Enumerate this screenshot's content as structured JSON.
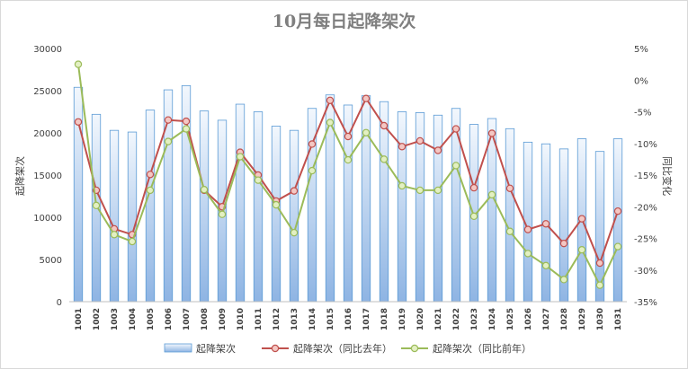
{
  "chart_data": {
    "type": "bar",
    "title": "10月每日起降架次",
    "ylabel": "起降架次",
    "y2label": "同比变化",
    "ylim": [
      0,
      30000
    ],
    "y_ticks": [
      "0",
      "5000",
      "10000",
      "15000",
      "20000",
      "25000",
      "30000"
    ],
    "y2lim": [
      -0.35,
      0.05
    ],
    "y2_ticks": [
      "-35%",
      "-30%",
      "-25%",
      "-20%",
      "-15%",
      "-10%",
      "-5%",
      "0%",
      "5%"
    ],
    "grid": false,
    "legend_position": "bottom",
    "categories": [
      "1001",
      "1002",
      "1003",
      "1004",
      "1005",
      "1006",
      "1007",
      "1008",
      "1009",
      "1010",
      "1011",
      "1012",
      "1013",
      "1014",
      "1015",
      "1016",
      "1017",
      "1018",
      "1019",
      "1020",
      "1021",
      "1022",
      "1023",
      "1024",
      "1025",
      "1026",
      "1027",
      "1028",
      "1029",
      "1030",
      "1031"
    ],
    "series": [
      {
        "name": "起降架次",
        "type": "bar",
        "axis": "left",
        "color": "#9dc3e6",
        "values": [
          25400,
          22200,
          20300,
          20100,
          22700,
          25100,
          25600,
          22600,
          21500,
          23400,
          22500,
          20800,
          20300,
          22900,
          24500,
          23300,
          24400,
          23700,
          22500,
          22400,
          22100,
          22900,
          21000,
          21700,
          20500,
          18900,
          18700,
          18100,
          19300,
          17800,
          19300
        ]
      },
      {
        "name": "起降架次（同比去年）",
        "type": "line",
        "axis": "right",
        "color": "#c0504d",
        "values": [
          -0.066,
          -0.174,
          -0.235,
          -0.244,
          -0.149,
          -0.063,
          -0.065,
          -0.174,
          -0.2,
          -0.114,
          -0.15,
          -0.191,
          -0.175,
          -0.101,
          -0.032,
          -0.089,
          -0.029,
          -0.072,
          -0.105,
          -0.096,
          -0.111,
          -0.077,
          -0.17,
          -0.084,
          -0.171,
          -0.236,
          -0.227,
          -0.258,
          -0.219,
          -0.289,
          -0.207
        ]
      },
      {
        "name": "起降架次（同比前年）",
        "type": "line",
        "axis": "right",
        "color": "#9bbb59",
        "values": [
          0.025,
          -0.198,
          -0.244,
          -0.255,
          -0.174,
          -0.097,
          -0.077,
          -0.173,
          -0.212,
          -0.121,
          -0.158,
          -0.197,
          -0.241,
          -0.143,
          -0.067,
          -0.126,
          -0.083,
          -0.125,
          -0.167,
          -0.174,
          -0.174,
          -0.135,
          -0.215,
          -0.181,
          -0.239,
          -0.274,
          -0.293,
          -0.315,
          -0.268,
          -0.324,
          -0.263
        ]
      }
    ]
  }
}
